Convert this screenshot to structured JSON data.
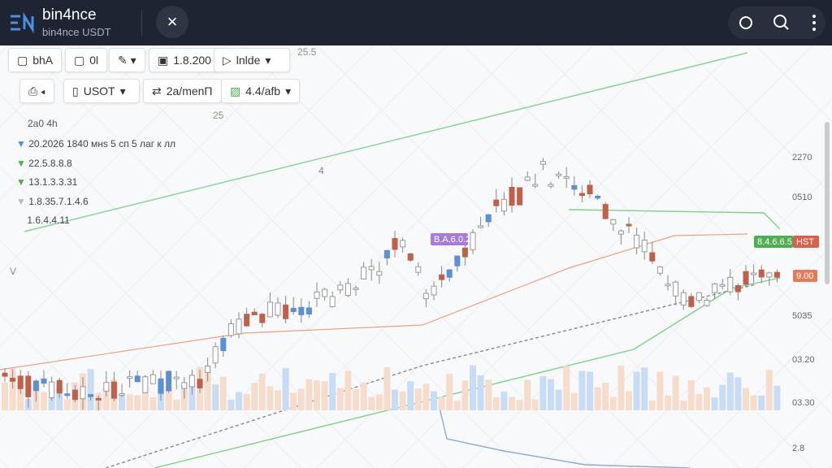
{
  "header": {
    "title": "bin4nce",
    "subtitle": "bin4nce USDT"
  },
  "toolbar": {
    "row1": [
      "bhA",
      "0l",
      "1.8.200",
      "lnlde"
    ],
    "row2": [
      "USOT",
      "2a/menП",
      "4.4/afb"
    ]
  },
  "legend": {
    "title": "2a0 4h",
    "lines": [
      "20.2026 1840 мнs 5 сп 5 лаг к лл",
      "22.5.8.8.8",
      "13.1.3.3.31",
      "1.8.35.7.1.4.6",
      "1.6.4.4.11"
    ]
  },
  "chart": {
    "annotations": [
      "25.5",
      "25",
      "4",
      "V"
    ],
    "price_tags": {
      "purple": "B.A.6.0.2",
      "green": "8.4.6.6.5",
      "red": "HST",
      "last": "9.00"
    },
    "axis_labels": [
      "2270",
      "0510",
      "5035",
      "03.20",
      "03.30",
      "2.8"
    ]
  }
}
